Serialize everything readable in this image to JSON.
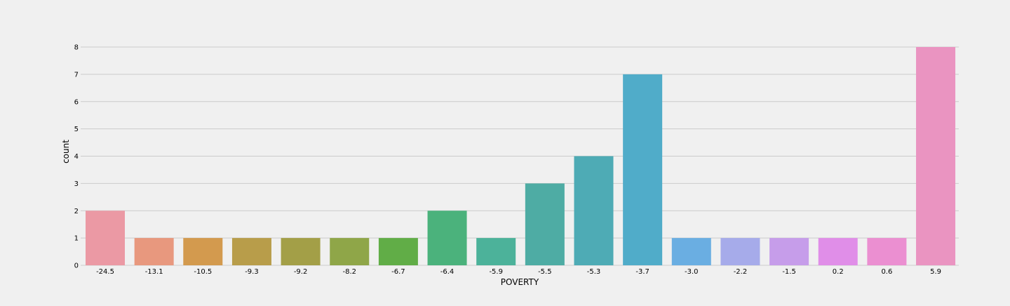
{
  "chart_data": {
    "type": "bar",
    "title": "",
    "xlabel": "POVERTY",
    "ylabel": "count",
    "ylim": [
      0,
      8
    ],
    "y_ticks": [
      0,
      1,
      2,
      3,
      4,
      5,
      6,
      7,
      8
    ],
    "grid": "horizontal",
    "categories": [
      "-24.5",
      "-13.1",
      "-10.5",
      "-9.3",
      "-9.2",
      "-8.2",
      "-6.7",
      "-6.4",
      "-5.9",
      "-5.5",
      "-5.3",
      "-3.7",
      "-3.0",
      "-2.2",
      "-1.5",
      "0.2",
      "0.6",
      "5.9"
    ],
    "values": [
      2,
      1,
      1,
      1,
      1,
      1,
      1,
      2,
      1,
      3,
      4,
      7,
      1,
      1,
      1,
      1,
      1,
      8
    ],
    "colors": [
      "#eb99a4",
      "#e8987e",
      "#d39a4e",
      "#b89d4a",
      "#a39f47",
      "#8fa648",
      "#61ad47",
      "#4bb27c",
      "#4cb29a",
      "#4eaca4",
      "#4eabb5",
      "#50acc9",
      "#6aaee2",
      "#a6abea",
      "#c69dea",
      "#e08ee8",
      "#eb8fd1",
      "#ea94c1"
    ],
    "background": "#f0f0f0",
    "grid_color": "#cbcbcb"
  }
}
